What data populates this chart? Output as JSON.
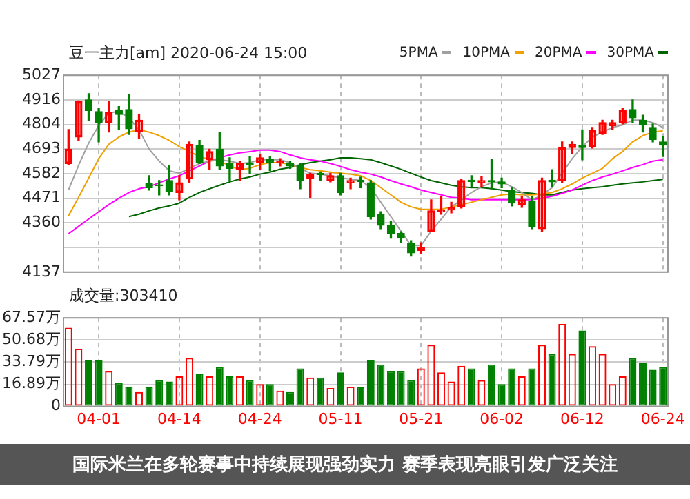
{
  "chart_data": [
    {
      "type": "candlestick",
      "title": "豆一主力[am] 2020-06-24 15:00",
      "annotations": [
        "国际米兰在多轮赛事中持续展现强劲实力 赛季表现亮眼引发广泛关注"
      ],
      "categories": [
        null,
        null,
        null,
        null,
        null,
        null,
        null,
        null,
        null,
        null,
        null,
        null,
        null,
        null,
        null,
        null,
        null,
        null,
        null,
        null,
        null,
        null,
        null,
        null,
        null,
        null,
        null,
        null,
        null,
        null,
        null,
        null,
        null,
        null,
        null,
        null,
        null,
        null,
        null,
        null,
        null,
        null,
        null,
        null,
        null,
        null,
        null,
        null,
        null,
        null,
        null,
        null,
        null,
        null,
        null,
        null,
        null,
        null,
        null,
        null
      ],
      "ohlc": [
        [
          4628,
          4782,
          4624,
          4693
        ],
        [
          4748,
          4911,
          4733,
          4907
        ],
        [
          4916,
          4944,
          4824,
          4868
        ],
        [
          4863,
          4879,
          4726,
          4813
        ],
        [
          4813,
          4907,
          4770,
          4857
        ],
        [
          4868,
          4885,
          4780,
          4850
        ],
        [
          4872,
          4938,
          4759,
          4785
        ],
        [
          4770,
          4850,
          4741,
          4824
        ],
        [
          4536,
          4573,
          4508,
          4519
        ],
        [
          4532,
          4551,
          4486,
          4527
        ],
        [
          4551,
          4617,
          4486,
          4501
        ],
        [
          4497,
          4573,
          4464,
          4541
        ],
        [
          4558,
          4726,
          4541,
          4715
        ],
        [
          4711,
          4733,
          4628,
          4632
        ],
        [
          4645,
          4693,
          4602,
          4682
        ],
        [
          4693,
          4770,
          4602,
          4617
        ],
        [
          4628,
          4654,
          4551,
          4606
        ],
        [
          4602,
          4639,
          4551,
          4628
        ],
        [
          4630,
          4660,
          4584,
          4624
        ],
        [
          4632,
          4667,
          4602,
          4654
        ],
        [
          4645,
          4660,
          4595,
          4632
        ],
        [
          4630,
          4650,
          4617,
          4637
        ],
        [
          4628,
          4639,
          4606,
          4617
        ],
        [
          4617,
          4628,
          4514,
          4551
        ],
        [
          4562,
          4584,
          4475,
          4580
        ],
        [
          4584,
          4590,
          4551,
          4578
        ],
        [
          4551,
          4584,
          4545,
          4573
        ],
        [
          4573,
          4584,
          4486,
          4497
        ],
        [
          4541,
          4562,
          4514,
          4551
        ],
        [
          4553,
          4567,
          4519,
          4547
        ],
        [
          4541,
          4551,
          4377,
          4388
        ],
        [
          4399,
          4410,
          4333,
          4349
        ],
        [
          4349,
          4366,
          4290,
          4312
        ],
        [
          4312,
          4320,
          4270,
          4290
        ],
        [
          4268,
          4279,
          4209,
          4224
        ],
        [
          4235,
          4270,
          4220,
          4250
        ],
        [
          4322,
          4464,
          4322,
          4414
        ],
        [
          4410,
          4480,
          4399,
          4416
        ],
        [
          4418,
          4453,
          4405,
          4427
        ],
        [
          4432,
          4558,
          4427,
          4551
        ],
        [
          4553,
          4573,
          4523,
          4547
        ],
        [
          4541,
          4569,
          4523,
          4551
        ],
        [
          4551,
          4645,
          4514,
          4545
        ],
        [
          4545,
          4562,
          4519,
          4536
        ],
        [
          4508,
          4519,
          4436,
          4449
        ],
        [
          4440,
          4480,
          4430,
          4464
        ],
        [
          4458,
          4480,
          4333,
          4344
        ],
        [
          4333,
          4562,
          4322,
          4551
        ],
        [
          4553,
          4600,
          4523,
          4545
        ],
        [
          4551,
          4726,
          4541,
          4698
        ],
        [
          4700,
          4726,
          4671,
          4715
        ],
        [
          4711,
          4780,
          4645,
          4700
        ],
        [
          4704,
          4791,
          4698,
          4776
        ],
        [
          4765,
          4824,
          4759,
          4813
        ],
        [
          4798,
          4824,
          4780,
          4813
        ],
        [
          4813,
          4879,
          4807,
          4868
        ],
        [
          4872,
          4916,
          4813,
          4835
        ],
        [
          4824,
          4846,
          4770,
          4802
        ],
        [
          4791,
          4807,
          4726,
          4737
        ],
        [
          4726,
          4748,
          4660,
          4711
        ]
      ],
      "colors": [
        "#ff0000",
        "#ff0000",
        "#008000",
        "#008000",
        "#ff0000",
        "#008000",
        "#008000",
        "#ff0000",
        "#008000",
        "#008000",
        "#008000",
        "#ff0000",
        "#ff0000",
        "#008000",
        "#ff0000",
        "#008000",
        "#008000",
        "#ff0000",
        "#008000",
        "#ff0000",
        "#008000",
        "#ff0000",
        "#008000",
        "#008000",
        "#ff0000",
        "#008000",
        "#ff0000",
        "#008000",
        "#ff0000",
        "#008000",
        "#008000",
        "#008000",
        "#008000",
        "#008000",
        "#008000",
        "#ff0000",
        "#ff0000",
        "#ff0000",
        "#ff0000",
        "#ff0000",
        "#008000",
        "#ff0000",
        "#008000",
        "#008000",
        "#008000",
        "#ff0000",
        "#008000",
        "#ff0000",
        "#008000",
        "#ff0000",
        "#ff0000",
        "#008000",
        "#ff0000",
        "#ff0000",
        "#ff0000",
        "#ff0000",
        "#008000",
        "#008000",
        "#008000",
        "#008000"
      ],
      "series": [
        {
          "name": "5PMA",
          "type": "line",
          "color": "#a0a0a0",
          "values": [
            4508,
            4620,
            4720,
            4800,
            4857,
            4863,
            4835,
            4781,
            4693,
            4639,
            4595,
            4584,
            4606,
            4628,
            4639,
            4645,
            4639,
            4628,
            4632,
            4645,
            4645,
            4645,
            4632,
            4606,
            4584,
            4580,
            4573,
            4562,
            4558,
            4551,
            4519,
            4453,
            4388,
            4322,
            4257,
            4257,
            4322,
            4377,
            4432,
            4464,
            4497,
            4523,
            4541,
            4545,
            4523,
            4497,
            4464,
            4486,
            4519,
            4584,
            4650,
            4704,
            4748,
            4770,
            4791,
            4802,
            4824,
            4824,
            4813,
            4791
          ]
        },
        {
          "name": "10PMA",
          "type": "line",
          "color": "#f0a000",
          "values": [
            4392,
            4475,
            4562,
            4650,
            4715,
            4748,
            4770,
            4781,
            4770,
            4754,
            4733,
            4704,
            4682,
            4660,
            4645,
            4639,
            4617,
            4600,
            4606,
            4623,
            4632,
            4632,
            4623,
            4610,
            4600,
            4595,
            4589,
            4584,
            4580,
            4573,
            4551,
            4519,
            4486,
            4453,
            4432,
            4421,
            4421,
            4421,
            4432,
            4442,
            4453,
            4464,
            4475,
            4486,
            4490,
            4486,
            4486,
            4490,
            4497,
            4514,
            4536,
            4562,
            4584,
            4606,
            4650,
            4682,
            4726,
            4754,
            4770,
            4776
          ]
        },
        {
          "name": "20PMA",
          "type": "line",
          "color": "#ff00ff",
          "values": [
            4311,
            4344,
            4377,
            4410,
            4442,
            4471,
            4497,
            4514,
            4523,
            4541,
            4558,
            4573,
            4595,
            4617,
            4639,
            4654,
            4667,
            4676,
            4682,
            4689,
            4689,
            4682,
            4667,
            4654,
            4645,
            4639,
            4628,
            4615,
            4600,
            4589,
            4580,
            4567,
            4551,
            4536,
            4523,
            4508,
            4497,
            4486,
            4475,
            4471,
            4464,
            4464,
            4464,
            4464,
            4464,
            4464,
            4464,
            4471,
            4480,
            4493,
            4508,
            4530,
            4551,
            4567,
            4580,
            4595,
            4610,
            4623,
            4639,
            4645
          ]
        },
        {
          "name": "30PMA",
          "type": "line",
          "color": "#006400",
          "values": [
            null,
            null,
            null,
            null,
            null,
            null,
            4388,
            4399,
            4414,
            4427,
            4436,
            4449,
            4475,
            4497,
            4514,
            4530,
            4545,
            4558,
            4567,
            4580,
            4589,
            4602,
            4610,
            4623,
            4632,
            4639,
            4645,
            4654,
            4654,
            4650,
            4645,
            4632,
            4617,
            4602,
            4584,
            4567,
            4551,
            4541,
            4530,
            4523,
            4519,
            4519,
            4514,
            4508,
            4501,
            4497,
            4493,
            4486,
            4486,
            4497,
            4508,
            4514,
            4519,
            4523,
            4530,
            4536,
            4541,
            4545,
            4551,
            4556
          ]
        }
      ],
      "ylim": [
        4137,
        5027
      ],
      "yticks": [
        4137,
        {
          "value": 4249,
          "label": null
        },
        4360,
        4471,
        4582,
        4693,
        4804,
        4916,
        5027
      ],
      "grid": true,
      "legend": "top right",
      "marker": "none",
      "tick_labels": "y"
    },
    {
      "type": "bar",
      "title": "成交量:303410",
      "categories": [
        null,
        null,
        null,
        "04-01",
        null,
        null,
        null,
        null,
        null,
        null,
        null,
        "04-14",
        null,
        null,
        null,
        null,
        null,
        null,
        null,
        "04-24",
        null,
        null,
        null,
        null,
        null,
        null,
        null,
        "05-11",
        null,
        null,
        null,
        null,
        null,
        null,
        null,
        "05-21",
        null,
        null,
        null,
        null,
        null,
        null,
        null,
        "06-02",
        null,
        null,
        null,
        null,
        null,
        null,
        null,
        "06-12",
        null,
        null,
        null,
        null,
        null,
        null,
        null,
        "06-24"
      ],
      "values": [
        60,
        44,
        35,
        35,
        27,
        18,
        15,
        11,
        15,
        20,
        19,
        23,
        37,
        25,
        23,
        30,
        23,
        23,
        20,
        17,
        17,
        12,
        11,
        29,
        22,
        22,
        14,
        26,
        15,
        15,
        35,
        32,
        27,
        27,
        20,
        29,
        47,
        26,
        19,
        31,
        29,
        20,
        32,
        17,
        29,
        23,
        29,
        47,
        40,
        63,
        40,
        58,
        46,
        40,
        17,
        23,
        37,
        33,
        28,
        30
      ],
      "colors": [
        "#ff0000",
        "#ff0000",
        "#008000",
        "#008000",
        "#ff0000",
        "#008000",
        "#008000",
        "#ff0000",
        "#008000",
        "#008000",
        "#008000",
        "#ff0000",
        "#ff0000",
        "#008000",
        "#ff0000",
        "#008000",
        "#008000",
        "#ff0000",
        "#008000",
        "#ff0000",
        "#008000",
        "#ff0000",
        "#008000",
        "#008000",
        "#ff0000",
        "#008000",
        "#ff0000",
        "#008000",
        "#ff0000",
        "#008000",
        "#008000",
        "#008000",
        "#008000",
        "#008000",
        "#008000",
        "#ff0000",
        "#ff0000",
        "#ff0000",
        "#ff0000",
        "#ff0000",
        "#008000",
        "#ff0000",
        "#008000",
        "#008000",
        "#008000",
        "#ff0000",
        "#008000",
        "#ff0000",
        "#008000",
        "#ff0000",
        "#ff0000",
        "#008000",
        "#ff0000",
        "#ff0000",
        "#ff0000",
        "#ff0000",
        "#008000",
        "#008000",
        "#008000",
        "#008000"
      ],
      "ylim": [
        0,
        67.57
      ],
      "yticks": [
        0,
        {
          "value": 16.89,
          "label": "16.89万"
        },
        {
          "value": 33.79,
          "label": "33.79万"
        },
        {
          "value": 50.68,
          "label": "50.68万"
        },
        {
          "value": 67.57,
          "label": "67.57万"
        }
      ],
      "grid": true
    }
  ]
}
